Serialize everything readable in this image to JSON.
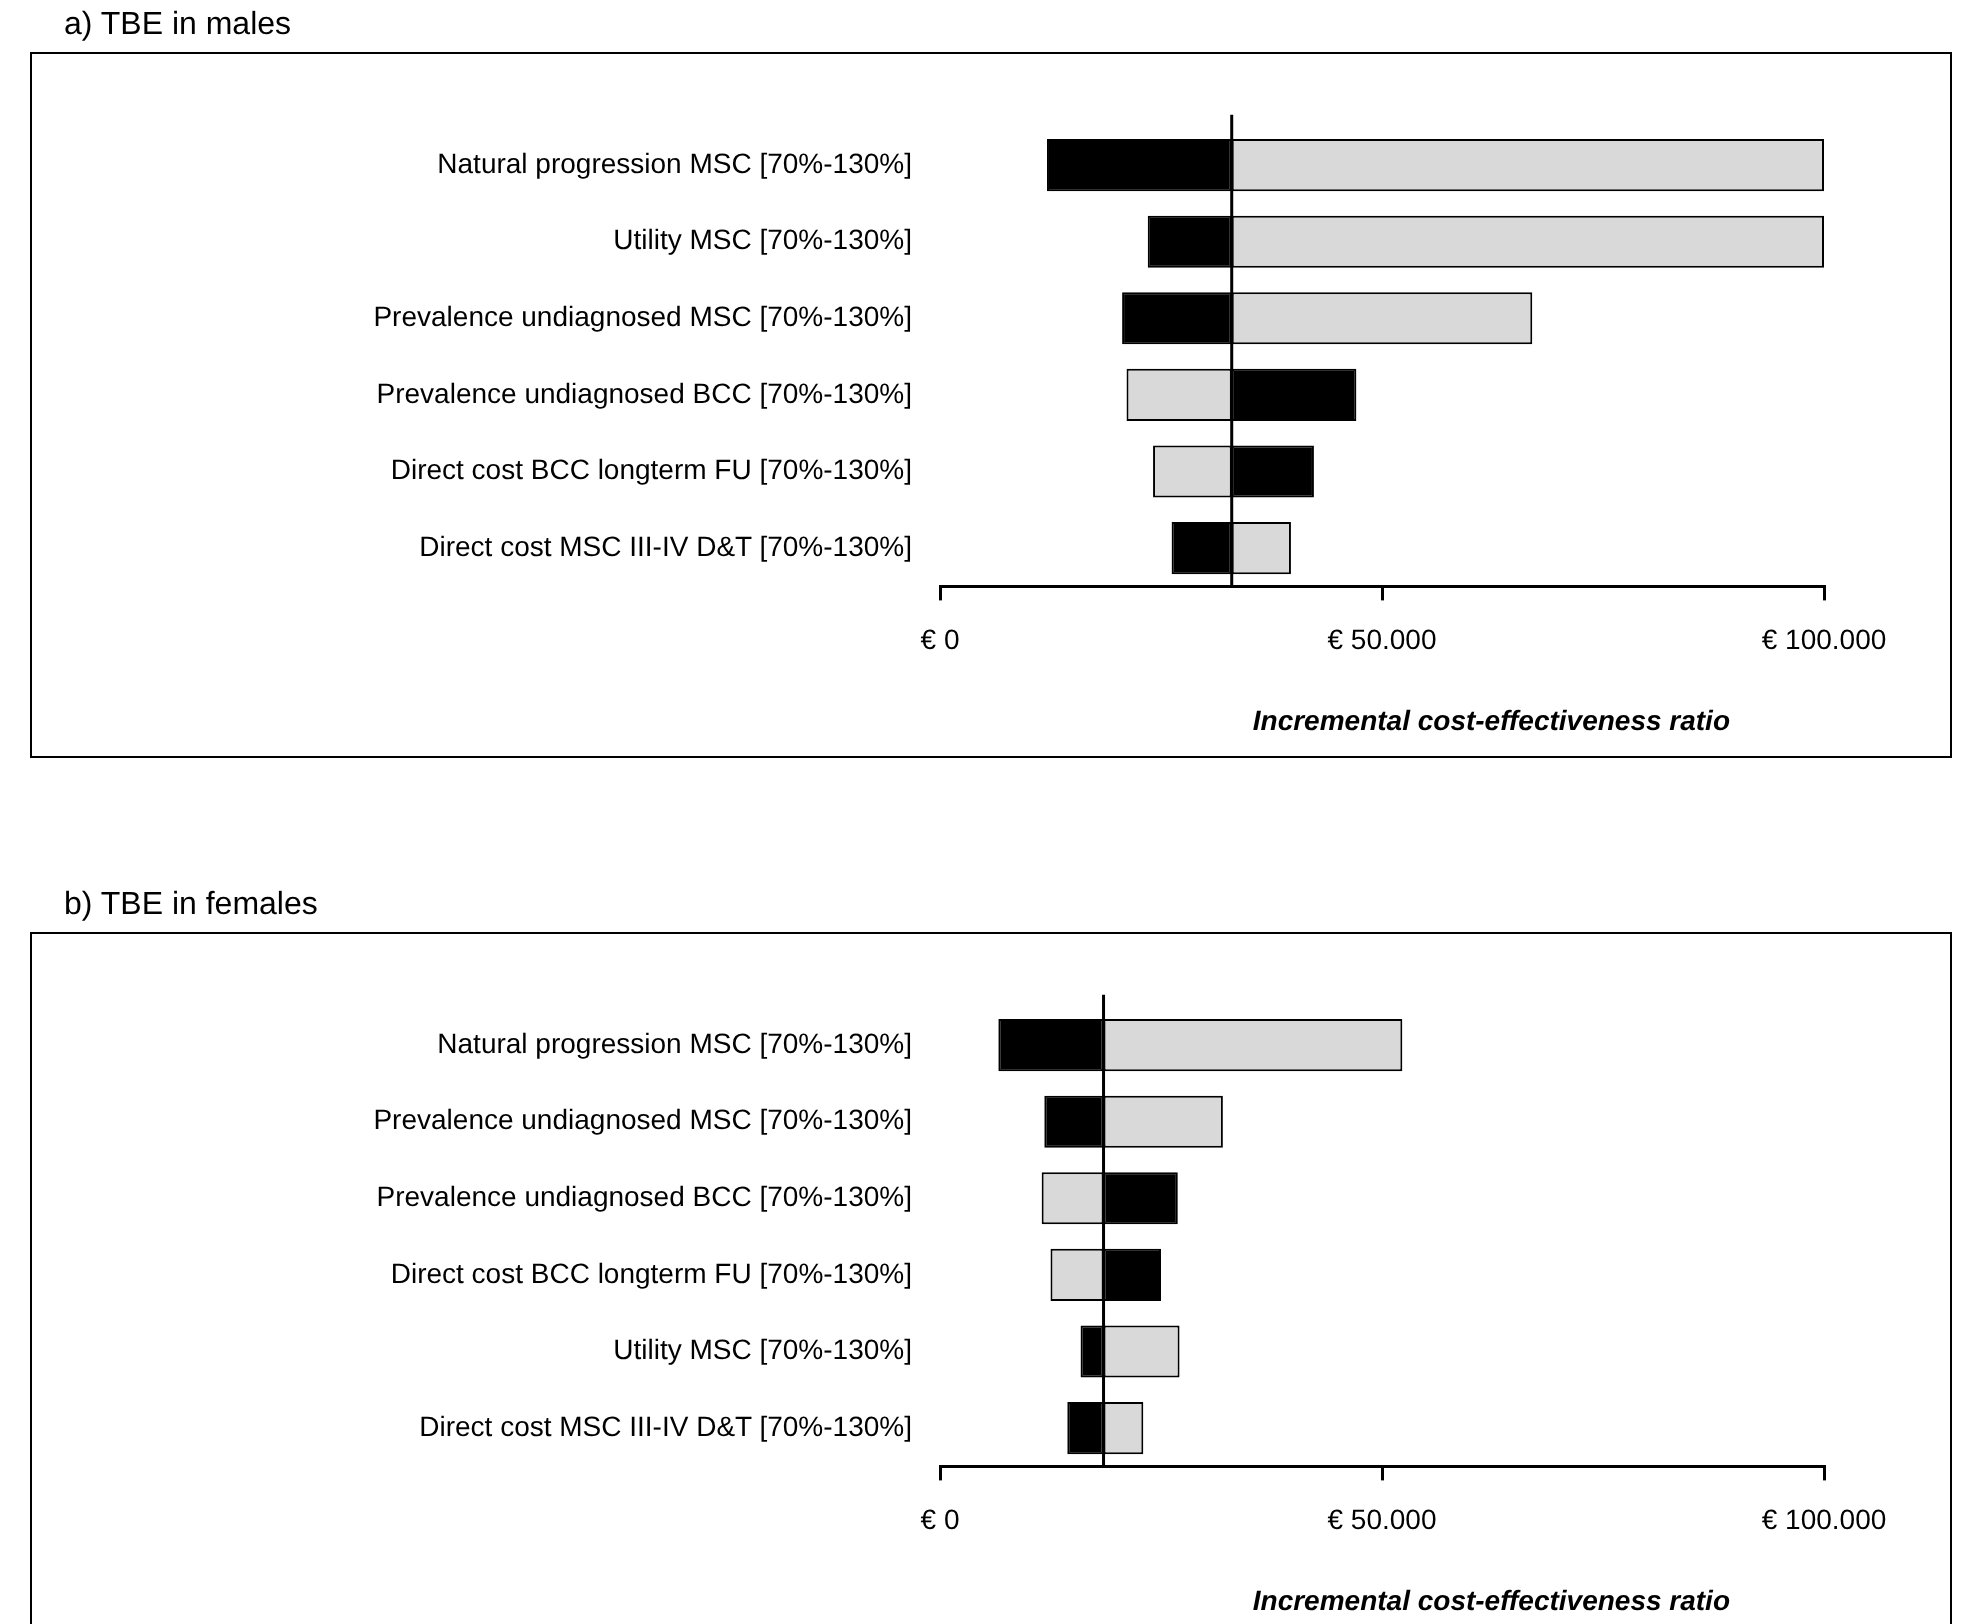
{
  "chart_data": [
    {
      "type": "bar",
      "orientation": "horizontal",
      "title": "a)    TBE in males",
      "xlabel": "Incremental  cost-effectiveness  ratio",
      "categories": [
        "Natural progression MSC [70%-130%]",
        "Utility MSC [70%-130%]",
        "Prevalence undiagnosed MSC [70%-130%]",
        "Prevalence undiagnosed BCC [70%-130%]",
        "Direct cost BCC longterm FU [70%-130%]",
        "Direct cost MSC III-IV D&T [70%-130%]"
      ],
      "series": [
        {
          "color": "#000000",
          "base": [
            12100,
            23500,
            20600,
            33000,
            33000,
            26200
          ],
          "values": [
            20900,
            9500,
            12400,
            14100,
            9300,
            6800
          ]
        },
        {
          "color": "#d9d9d9",
          "base": [
            33000,
            33000,
            33000,
            21100,
            24100,
            33000
          ],
          "values": [
            67000,
            67000,
            34000,
            11900,
            8900,
            6700
          ]
        }
      ],
      "xlim": [
        0,
        100000
      ],
      "xticks": [
        {
          "value": 0,
          "label": "€ 0"
        },
        {
          "value": 50000,
          "label": "€ 50.000"
        },
        {
          "value": 100000,
          "label": "€ 100.000"
        }
      ],
      "ref_lines": [
        {
          "axis": "x",
          "value": 33000,
          "color": "#000000"
        }
      ],
      "grid": false,
      "legend": false
    },
    {
      "type": "bar",
      "orientation": "horizontal",
      "title": "b)    TBE in females",
      "xlabel": "Incremental  cost-effectiveness  ratio",
      "categories": [
        "Natural progression MSC [70%-130%]",
        "Prevalence undiagnosed MSC [70%-130%]",
        "Prevalence undiagnosed BCC [70%-130%]",
        "Direct cost BCC longterm FU [70%-130%]",
        "Utility MSC [70%-130%]",
        "Direct cost MSC III-IV D&T [70%-130%]"
      ],
      "series": [
        {
          "color": "#000000",
          "base": [
            6600,
            11800,
            18500,
            18500,
            15900,
            14400
          ],
          "values": [
            11900,
            6700,
            8400,
            6500,
            2600,
            4100
          ]
        },
        {
          "color": "#d9d9d9",
          "base": [
            18500,
            18500,
            11500,
            12500,
            18500,
            18500
          ],
          "values": [
            33800,
            13500,
            7000,
            6000,
            8600,
            4500
          ]
        }
      ],
      "xlim": [
        0,
        100000
      ],
      "xticks": [
        {
          "value": 0,
          "label": "€ 0"
        },
        {
          "value": 50000,
          "label": "€ 50.000"
        },
        {
          "value": 100000,
          "label": "€ 100.000"
        }
      ],
      "ref_lines": [
        {
          "axis": "x",
          "value": 18500,
          "color": "#000000"
        }
      ],
      "grid": false,
      "legend": false
    }
  ]
}
